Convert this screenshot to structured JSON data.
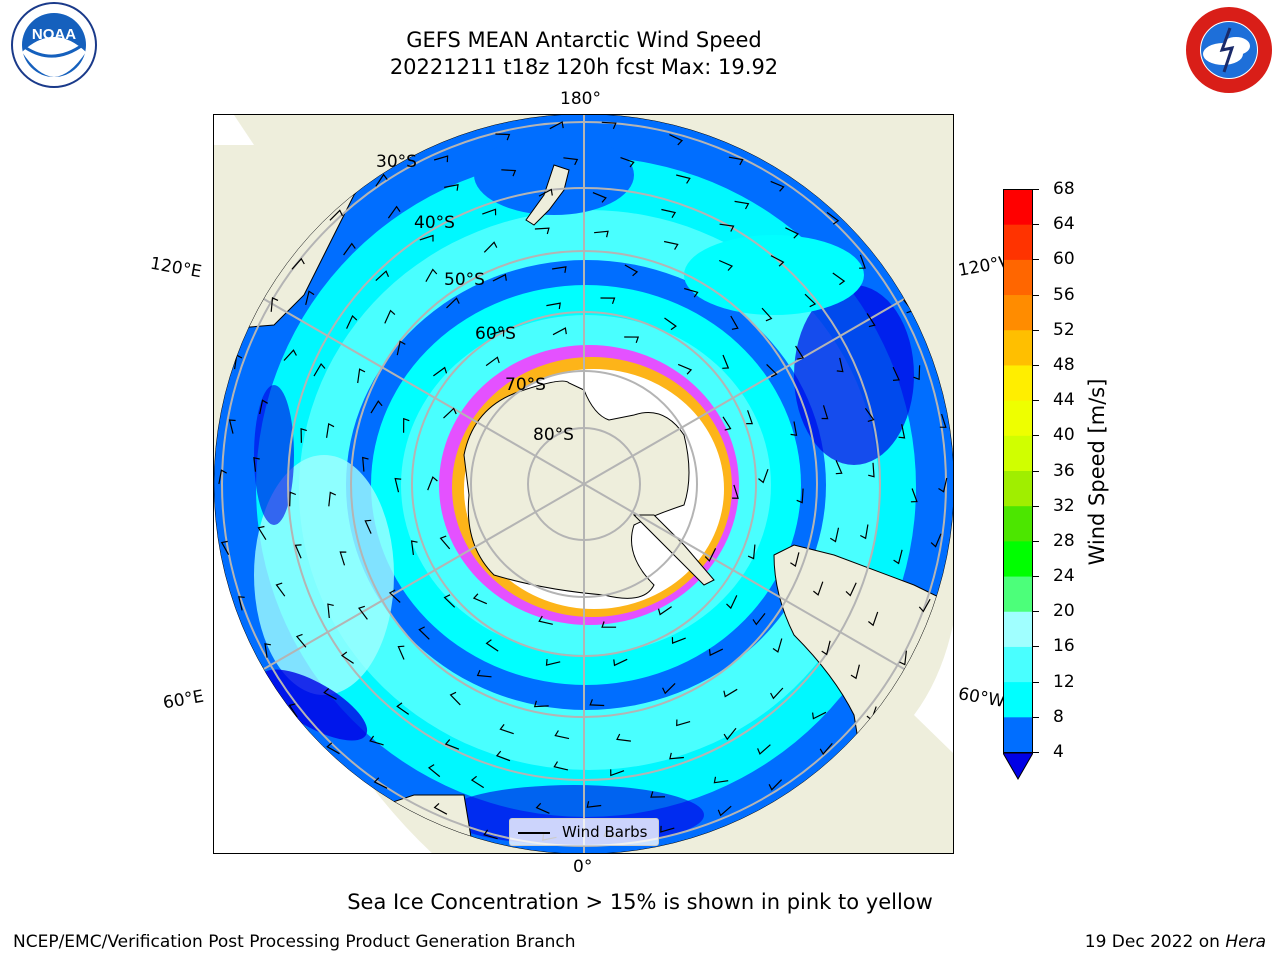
{
  "header": {
    "title_line1": "GEFS MEAN Antarctic Wind Speed",
    "title_line2": "20221211 t18z 120h fcst   Max: 19.92"
  },
  "logos": {
    "left": "NOAA",
    "right": "NATIONAL WEATHER SERVICE"
  },
  "map": {
    "projection": "south-polar-stereographic",
    "longitude_labels": {
      "top": "180°",
      "bottom": "0°",
      "upper_left": "120°E",
      "upper_right": "120°W",
      "lower_left": "60°E",
      "lower_right": "60°W"
    },
    "latitude_labels": [
      "30°S",
      "40°S",
      "50°S",
      "60°S",
      "70°S",
      "80°S"
    ],
    "legend": {
      "label": "Wind Barbs"
    }
  },
  "colorbar": {
    "label": "Wind Speed [m/s]",
    "ticks": [
      "4",
      "8",
      "12",
      "16",
      "20",
      "24",
      "28",
      "32",
      "36",
      "40",
      "44",
      "48",
      "52",
      "56",
      "60",
      "64",
      "68"
    ],
    "colors": [
      "#0000e6",
      "#006eff",
      "#00ffff",
      "#49ffff",
      "#a0ffff",
      "#4cff7a",
      "#00ff00",
      "#4ce600",
      "#a0ee00",
      "#d0ff00",
      "#eeff00",
      "#ffee00",
      "#ffbf00",
      "#ff8c00",
      "#ff6600",
      "#ff3300",
      "#ff0000"
    ],
    "extend": "min"
  },
  "note": "Sea Ice Concentration > 15% is shown in pink to yellow",
  "footer": {
    "left": "NCEP/EMC/Verification Post Processing Product Generation Branch",
    "right_prefix": "19 Dec 2022 on ",
    "right_host": "Hera"
  }
}
